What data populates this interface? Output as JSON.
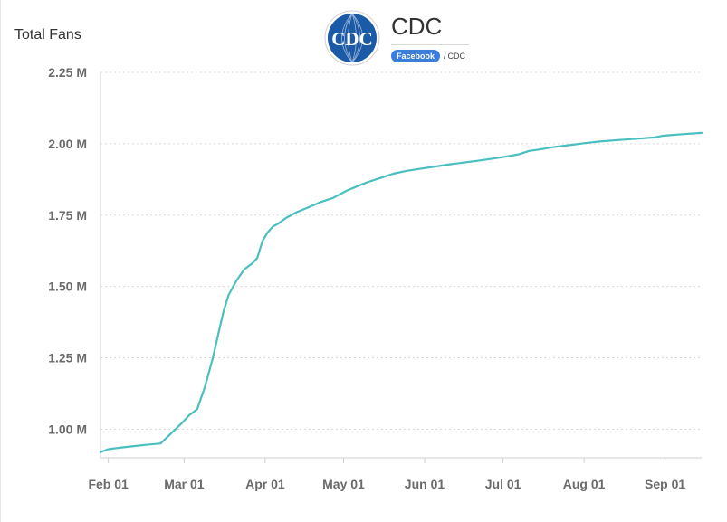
{
  "header": {
    "logo_text": "CDC",
    "profile_name": "CDC",
    "network_badge": "Facebook",
    "separator": "/",
    "handle": "CDC"
  },
  "colors": {
    "line": "#4bbfbf",
    "grid": "#d9d9d9",
    "axis_text": "#6b6b6b",
    "badge": "#3b7ddd",
    "logo_blue": "#1b5aa6"
  },
  "chart_data": {
    "type": "line",
    "title": "Total Fans",
    "xlabel": "",
    "ylabel": "",
    "ylim": [
      0.9,
      2.25
    ],
    "yticks": [
      1.0,
      1.25,
      1.5,
      1.75,
      2.0,
      2.25
    ],
    "ytick_labels": [
      "1.00 M",
      "1.25 M",
      "1.50 M",
      "1.75 M",
      "2.00 M",
      "2.25 M"
    ],
    "xlim": [
      -3,
      227
    ],
    "xticks": [
      0,
      29,
      60,
      90,
      121,
      151,
      182,
      213
    ],
    "xtick_labels": [
      "Feb 01",
      "Mar 01",
      "Apr 01",
      "May 01",
      "Jun 01",
      "Jul 01",
      "Aug 01",
      "Sep 01"
    ],
    "grid": true,
    "series": [
      {
        "name": "Total Fans",
        "x": [
          -3,
          0,
          4,
          9,
          14,
          20,
          24,
          28,
          31,
          34,
          37,
          40,
          42,
          44,
          46,
          49,
          52,
          55,
          57,
          59,
          61,
          63,
          65,
          68,
          72,
          76,
          81,
          86,
          91,
          95,
          99,
          104,
          109,
          114,
          119,
          125,
          130,
          135,
          141,
          147,
          152,
          157,
          161,
          165,
          170,
          176,
          182,
          188,
          195,
          203,
          209,
          212,
          216,
          222,
          227
        ],
        "values": [
          0.92,
          0.93,
          0.935,
          0.94,
          0.945,
          0.95,
          0.985,
          1.02,
          1.05,
          1.07,
          1.15,
          1.25,
          1.33,
          1.41,
          1.47,
          1.52,
          1.56,
          1.58,
          1.6,
          1.66,
          1.69,
          1.71,
          1.72,
          1.74,
          1.76,
          1.775,
          1.795,
          1.81,
          1.835,
          1.85,
          1.865,
          1.88,
          1.895,
          1.905,
          1.912,
          1.92,
          1.927,
          1.933,
          1.94,
          1.948,
          1.955,
          1.963,
          1.975,
          1.98,
          1.988,
          1.995,
          2.002,
          2.008,
          2.013,
          2.018,
          2.022,
          2.028,
          2.031,
          2.035,
          2.038
        ]
      }
    ]
  }
}
